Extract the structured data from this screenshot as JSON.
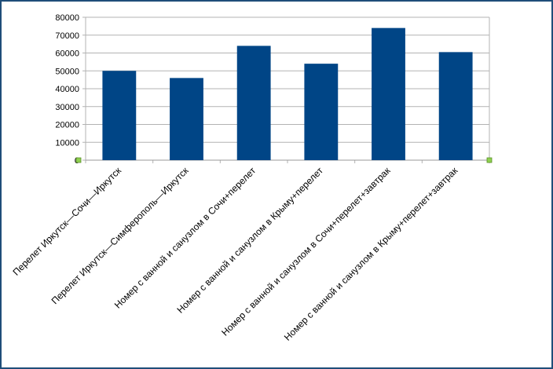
{
  "chart_data": {
    "type": "bar",
    "categories": [
      "Перелет Иркутск—Сочи—Иркутск",
      "Перелет Иркутск—Симферополь—Иркутск",
      "Номер с ванной и санузлом в Сочи+перелет",
      "Номер с ванной и санузлом в Крыму+перелет",
      "Номер с ванной и санузлом в Сочи+перелет+завтрак",
      "Номер с ванной и санузлом в Крыму+перелет+завтрак"
    ],
    "values": [
      50000,
      46000,
      64000,
      54000,
      74000,
      60500
    ],
    "yticks": [
      "0",
      "10000",
      "20000",
      "30000",
      "40000",
      "50000",
      "60000",
      "70000",
      "80000"
    ],
    "ylim": [
      0,
      80000
    ],
    "grid": true,
    "legend": "none",
    "bar_color": "#004586",
    "title": "",
    "xlabel": "",
    "ylabel": ""
  },
  "colors": {
    "frame": "#1f4e79",
    "grid": "#b3b3b3",
    "handle": "#8fd14f"
  }
}
